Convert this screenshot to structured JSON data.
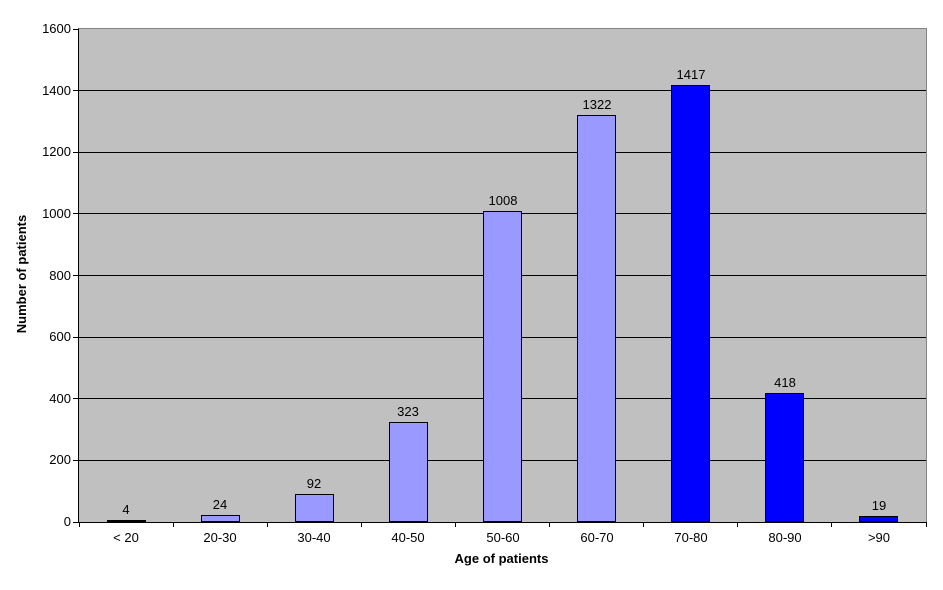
{
  "chart_data": {
    "type": "bar",
    "title": "",
    "xlabel": "Age of patients",
    "ylabel": "Number of patients",
    "categories": [
      "< 20",
      "20-30",
      "30-40",
      "40-50",
      "50-60",
      "60-70",
      "70-80",
      "80-90",
      ">90"
    ],
    "values": [
      4,
      24,
      92,
      323,
      1008,
      1322,
      1417,
      418,
      19
    ],
    "value_labels": [
      "4",
      "24",
      "92",
      "323",
      "1008",
      "1322",
      "1417",
      "418",
      "19"
    ],
    "bar_colors": [
      "#9999FF",
      "#9999FF",
      "#9999FF",
      "#9999FF",
      "#9999FF",
      "#9999FF",
      "#0000FF",
      "#0000FF",
      "#0000FF"
    ],
    "ylim": [
      0,
      1600
    ],
    "yticks": [
      0,
      200,
      400,
      600,
      800,
      1000,
      1200,
      1400,
      1600
    ],
    "grid": "horizontal",
    "legend": "none",
    "data_labels": "above-bars"
  },
  "colors": {
    "page_background": "#FFFFFF",
    "plot_background": "#C0C0C0",
    "bar_light": "#9999FF",
    "bar_dark": "#0000FF",
    "gridline": "#000000",
    "axis_line": "#000000",
    "plot_border": "#848484",
    "text": "#000000"
  }
}
